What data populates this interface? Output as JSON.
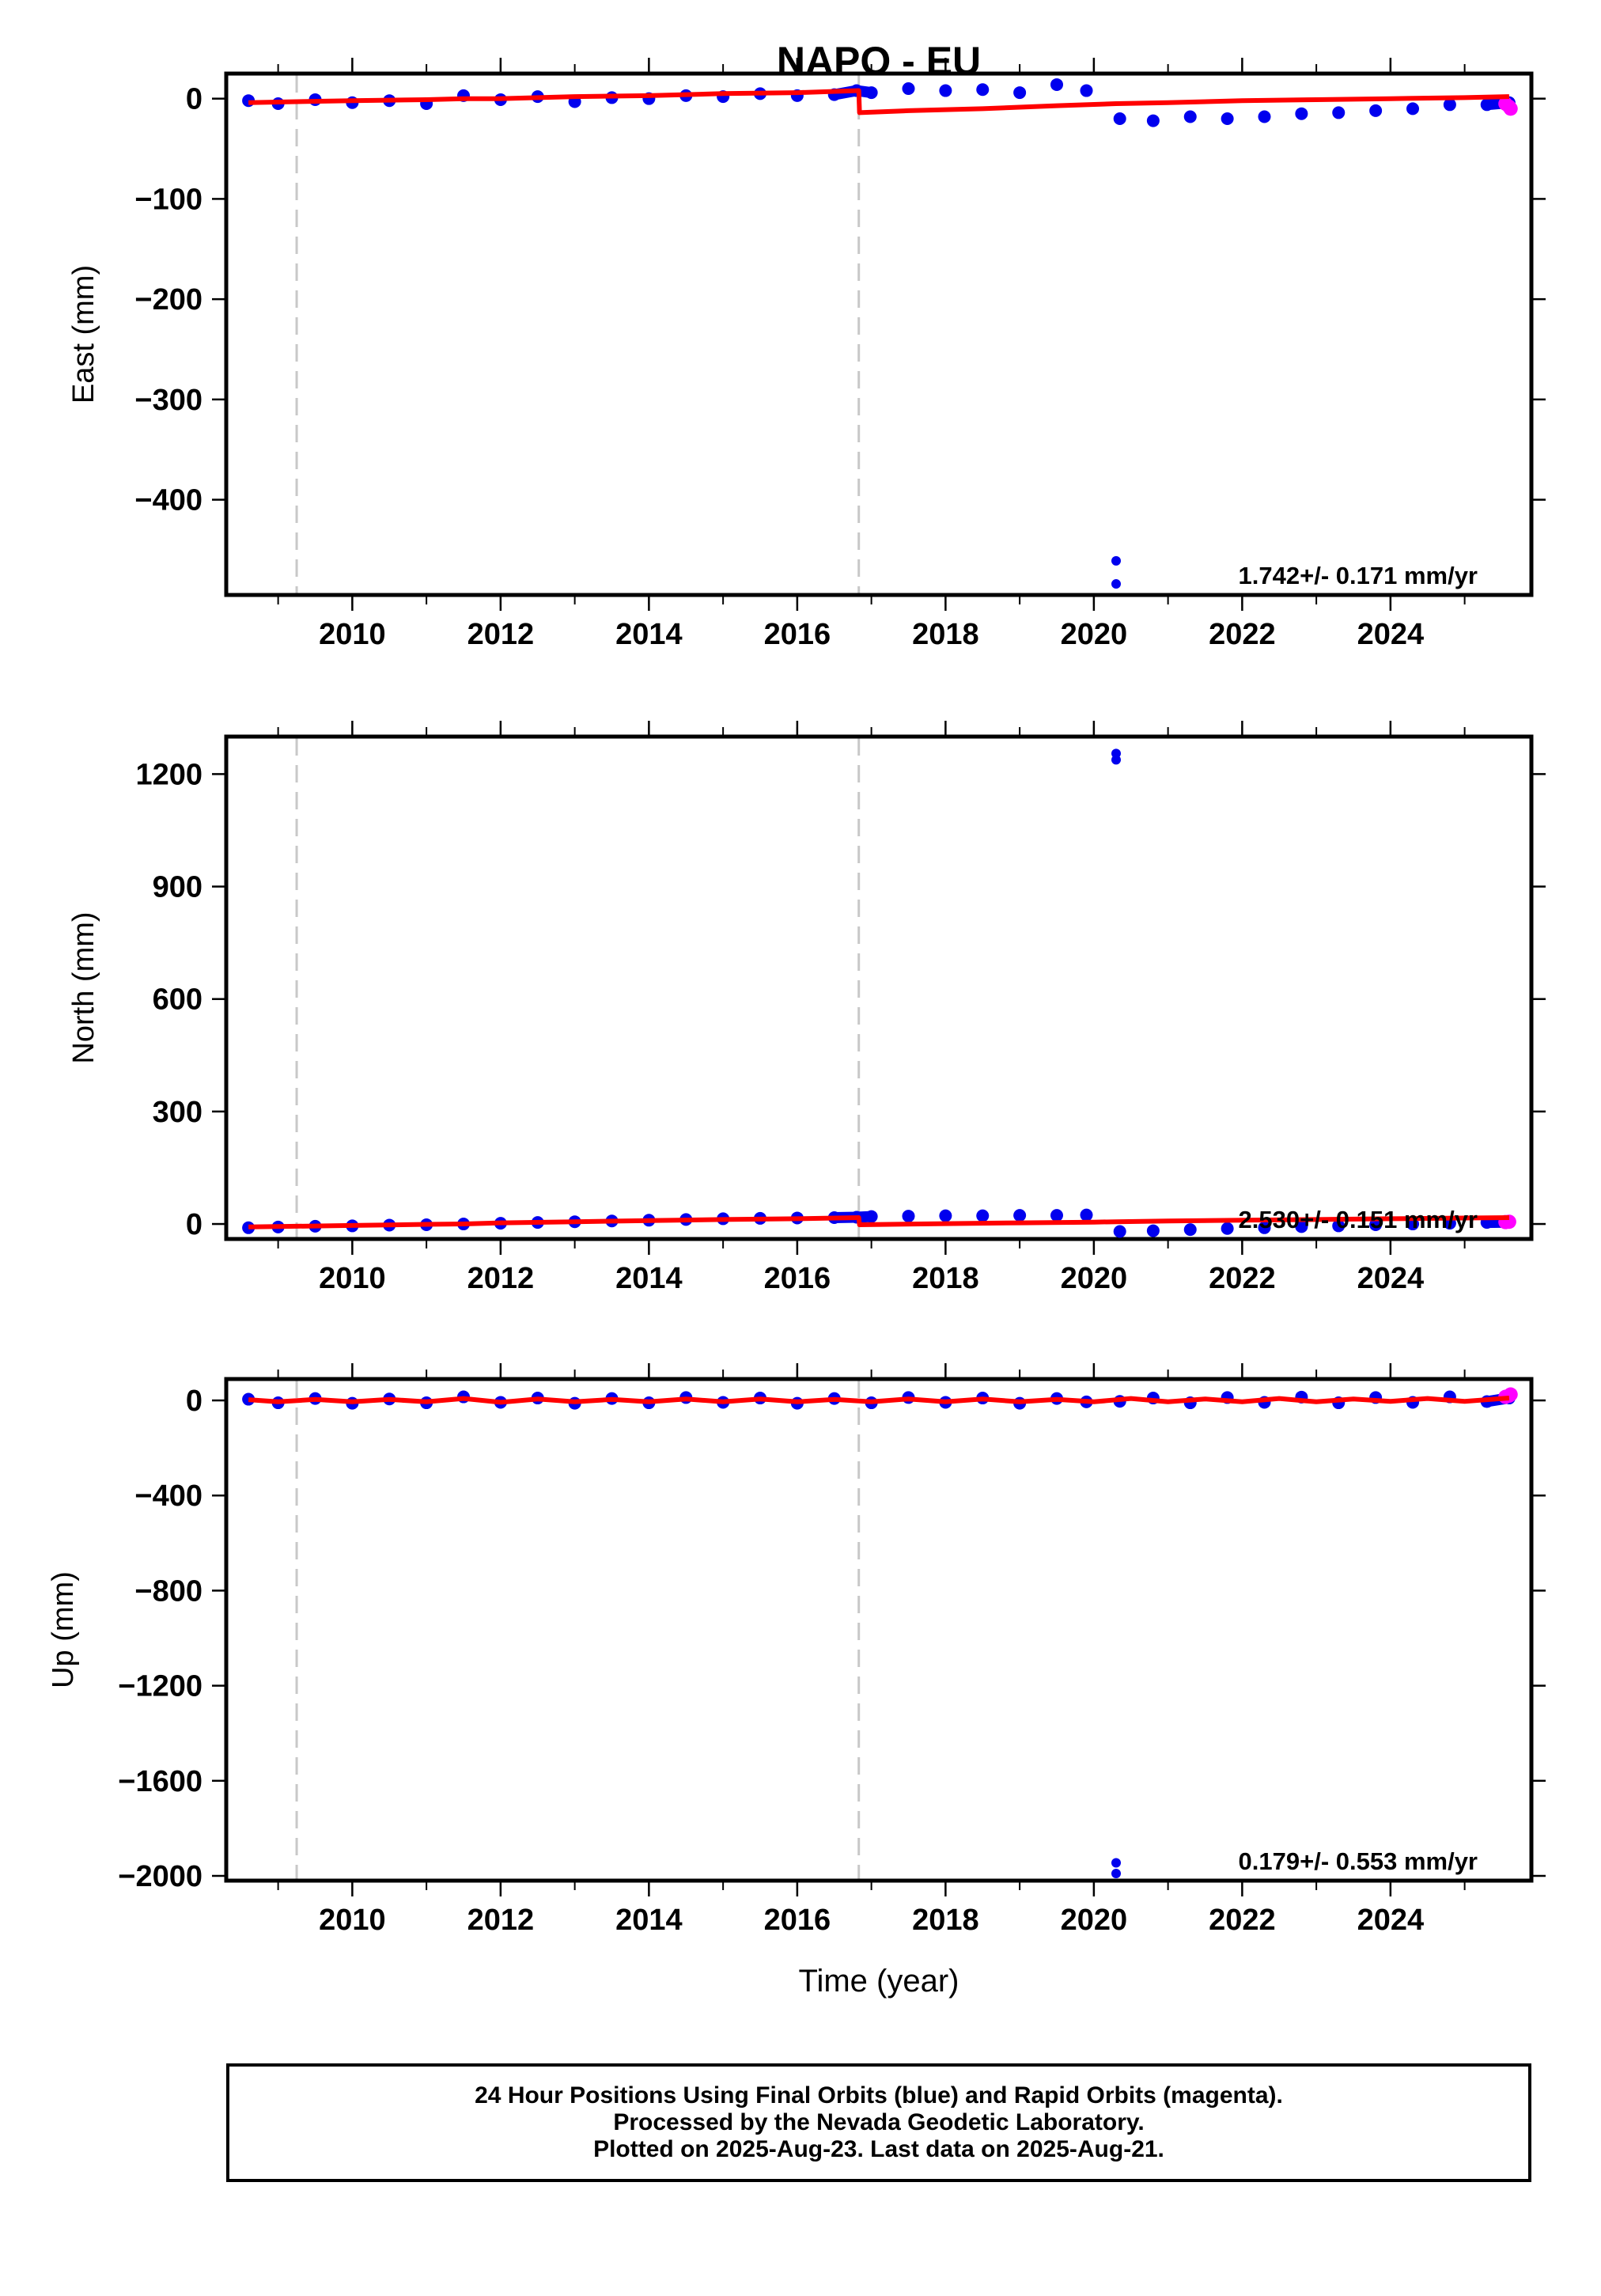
{
  "title": "NAPO - EU",
  "colors": {
    "final_orbits": "#0000ee",
    "rapid_orbits": "#ff00ff",
    "model": "#ff0000",
    "event_lines": "#c8c8c8",
    "frame": "#000000"
  },
  "chart_data": [
    {
      "type": "scatter",
      "panel": "east",
      "ylabel": "East (mm)",
      "xlabel": "",
      "xlim": [
        2008.3,
        2025.9
      ],
      "ylim": [
        -495,
        25
      ],
      "yticks": [
        0,
        -100,
        -200,
        -300,
        -400
      ],
      "ytick_labels": [
        "0",
        "−100",
        "−200",
        "−300",
        "−400"
      ],
      "xticks": [
        2010,
        2012,
        2014,
        2016,
        2018,
        2020,
        2022,
        2024
      ],
      "xtick_labels": [
        "2010",
        "2012",
        "2014",
        "2016",
        "2018",
        "2020",
        "2022",
        "2024"
      ],
      "event_lines_x": [
        2009.25,
        2016.83
      ],
      "annotation": "1.742+/- 0.171 mm/yr",
      "series": [
        {
          "role": "final_orbits",
          "x": [
            2008.6,
            2009.0,
            2009.5,
            2010.0,
            2010.5,
            2011.0,
            2011.5,
            2012.0,
            2012.5,
            2013.0,
            2013.5,
            2014.0,
            2014.5,
            2015.0,
            2015.5,
            2016.0,
            2016.5,
            2016.8,
            2017.0,
            2017.5,
            2018.0,
            2018.5,
            2019.0,
            2019.5,
            2019.9,
            2020.35,
            2020.8,
            2021.3,
            2021.8,
            2022.3,
            2022.8,
            2023.3,
            2023.8,
            2024.3,
            2024.8,
            2025.3,
            2025.6
          ],
          "y": [
            -2,
            -5,
            -1,
            -4,
            -2,
            -5,
            3,
            -1,
            2,
            -3,
            1,
            0,
            3,
            2,
            5,
            3,
            4,
            8,
            6,
            10,
            8,
            9,
            6,
            14,
            8,
            -20,
            -22,
            -18,
            -20,
            -18,
            -15,
            -14,
            -12,
            -10,
            -6,
            -6,
            -4
          ]
        },
        {
          "role": "final_orbits_outliers",
          "x": [
            2020.3,
            2020.3
          ],
          "y": [
            -461,
            -484
          ]
        },
        {
          "role": "rapid_orbits",
          "x": [
            2025.55,
            2025.6,
            2025.62
          ],
          "y": [
            -5,
            -8,
            -10
          ]
        },
        {
          "role": "model",
          "x": [
            2008.6,
            2009.25,
            2010.0,
            2011.0,
            2011.5,
            2012.0,
            2013.0,
            2014.0,
            2015.0,
            2016.0,
            2016.83,
            2016.84,
            2017.5,
            2018.5,
            2019.5,
            2020.3,
            2021.0,
            2022.0,
            2023.0,
            2024.0,
            2025.0,
            2025.6
          ],
          "y": [
            -4,
            -3,
            -2,
            -1,
            0,
            0,
            2,
            3,
            5,
            6,
            8,
            -14,
            -12,
            -10,
            -7,
            -5,
            -4,
            -2,
            -1,
            0,
            1,
            2
          ]
        }
      ]
    },
    {
      "type": "scatter",
      "panel": "north",
      "ylabel": "North (mm)",
      "xlabel": "",
      "xlim": [
        2008.3,
        2025.9
      ],
      "ylim": [
        -40,
        1300
      ],
      "yticks": [
        0,
        300,
        600,
        900,
        1200
      ],
      "ytick_labels": [
        "0",
        "300",
        "600",
        "900",
        "1200"
      ],
      "xticks": [
        2010,
        2012,
        2014,
        2016,
        2018,
        2020,
        2022,
        2024
      ],
      "xtick_labels": [
        "2010",
        "2012",
        "2014",
        "2016",
        "2018",
        "2020",
        "2022",
        "2024"
      ],
      "event_lines_x": [
        2009.25,
        2016.83
      ],
      "annotation": "2.530+/- 0.151 mm/yr",
      "series": [
        {
          "role": "final_orbits",
          "x": [
            2008.6,
            2009.0,
            2009.5,
            2010.0,
            2010.5,
            2011.0,
            2011.5,
            2012.0,
            2012.5,
            2013.0,
            2013.5,
            2014.0,
            2014.5,
            2015.0,
            2015.5,
            2016.0,
            2016.5,
            2016.8,
            2017.0,
            2017.5,
            2018.0,
            2018.5,
            2019.0,
            2019.5,
            2019.9,
            2020.35,
            2020.8,
            2021.3,
            2021.8,
            2022.3,
            2022.8,
            2023.3,
            2023.8,
            2024.3,
            2024.8,
            2025.3,
            2025.6
          ],
          "y": [
            -10,
            -8,
            -6,
            -5,
            -3,
            -2,
            0,
            2,
            4,
            6,
            8,
            10,
            12,
            14,
            15,
            16,
            17,
            18,
            20,
            21,
            22,
            22,
            23,
            23,
            24,
            -20,
            -18,
            -15,
            -12,
            -10,
            -7,
            -5,
            -2,
            0,
            2,
            4,
            5
          ]
        },
        {
          "role": "final_orbits_outliers",
          "x": [
            2020.3,
            2020.3
          ],
          "y": [
            1255,
            1238
          ]
        },
        {
          "role": "rapid_orbits",
          "x": [
            2025.55,
            2025.6
          ],
          "y": [
            5,
            6
          ]
        },
        {
          "role": "model",
          "x": [
            2008.6,
            2009.25,
            2010.0,
            2011.0,
            2011.5,
            2012.0,
            2013.0,
            2014.0,
            2015.0,
            2016.0,
            2016.83,
            2016.84,
            2018.0,
            2019.0,
            2020.0,
            2020.3,
            2021.0,
            2022.0,
            2023.0,
            2024.0,
            2025.0,
            2025.6
          ],
          "y": [
            -8,
            -6,
            -4,
            -1,
            0,
            3,
            6,
            9,
            12,
            14,
            17,
            -2,
            1,
            3,
            5,
            6,
            8,
            10,
            12,
            14,
            16,
            17
          ]
        }
      ]
    },
    {
      "type": "scatter",
      "panel": "up",
      "ylabel": "Up (mm)",
      "xlabel": "Time (year)",
      "xlim": [
        2008.3,
        2025.9
      ],
      "ylim": [
        -2020,
        90
      ],
      "yticks": [
        0,
        -400,
        -800,
        -1200,
        -1600,
        -2000
      ],
      "ytick_labels": [
        "0",
        "−400",
        "−800",
        "−1200",
        "−1600",
        "−2000"
      ],
      "xticks": [
        2010,
        2012,
        2014,
        2016,
        2018,
        2020,
        2022,
        2024
      ],
      "xtick_labels": [
        "2010",
        "2012",
        "2014",
        "2016",
        "2018",
        "2020",
        "2022",
        "2024"
      ],
      "event_lines_x": [
        2009.25,
        2016.83
      ],
      "annotation": "0.179+/- 0.553 mm/yr",
      "series": [
        {
          "role": "final_orbits",
          "x": [
            2008.6,
            2009.0,
            2009.5,
            2010.0,
            2010.5,
            2011.0,
            2011.5,
            2012.0,
            2012.5,
            2013.0,
            2013.5,
            2014.0,
            2014.5,
            2015.0,
            2015.5,
            2016.0,
            2016.5,
            2017.0,
            2017.5,
            2018.0,
            2018.5,
            2019.0,
            2019.5,
            2019.9,
            2020.35,
            2020.8,
            2021.3,
            2021.8,
            2022.3,
            2022.8,
            2023.3,
            2023.8,
            2024.3,
            2024.8,
            2025.3,
            2025.6
          ],
          "y": [
            5,
            -10,
            8,
            -12,
            6,
            -10,
            15,
            -8,
            10,
            -12,
            8,
            -10,
            12,
            -8,
            10,
            -12,
            8,
            -10,
            12,
            -8,
            10,
            -12,
            8,
            -6,
            -4,
            10,
            -10,
            12,
            -8,
            14,
            -10,
            12,
            -8,
            15,
            -5,
            10
          ]
        },
        {
          "role": "final_orbits_outliers",
          "x": [
            2020.3,
            2020.3
          ],
          "y": [
            -1945,
            -1990
          ]
        },
        {
          "role": "rapid_orbits",
          "x": [
            2025.55,
            2025.6,
            2025.62
          ],
          "y": [
            15,
            20,
            25
          ]
        },
        {
          "role": "model",
          "x": [
            2008.6,
            2009.0,
            2009.5,
            2010.0,
            2010.5,
            2011.0,
            2011.5,
            2012.0,
            2012.5,
            2013.0,
            2013.5,
            2014.0,
            2014.5,
            2015.0,
            2015.5,
            2016.0,
            2016.5,
            2017.0,
            2017.5,
            2018.0,
            2018.5,
            2019.0,
            2019.5,
            2020.0,
            2020.5,
            2021.0,
            2021.5,
            2022.0,
            2022.5,
            2023.0,
            2023.5,
            2024.0,
            2024.5,
            2025.0,
            2025.6
          ],
          "y": [
            3,
            -6,
            4,
            -6,
            4,
            -6,
            8,
            -8,
            6,
            -6,
            4,
            -6,
            6,
            -6,
            6,
            -6,
            4,
            -6,
            6,
            -6,
            6,
            -6,
            4,
            -6,
            8,
            -6,
            6,
            -6,
            8,
            -6,
            6,
            -4,
            8,
            -4,
            10
          ]
        }
      ]
    }
  ],
  "footer": {
    "line1": "24 Hour Positions Using Final Orbits (blue) and Rapid Orbits (magenta).",
    "line2": "Processed by the Nevada Geodetic Laboratory.",
    "line3": "Plotted on 2025-Aug-23. Last data on 2025-Aug-21."
  }
}
